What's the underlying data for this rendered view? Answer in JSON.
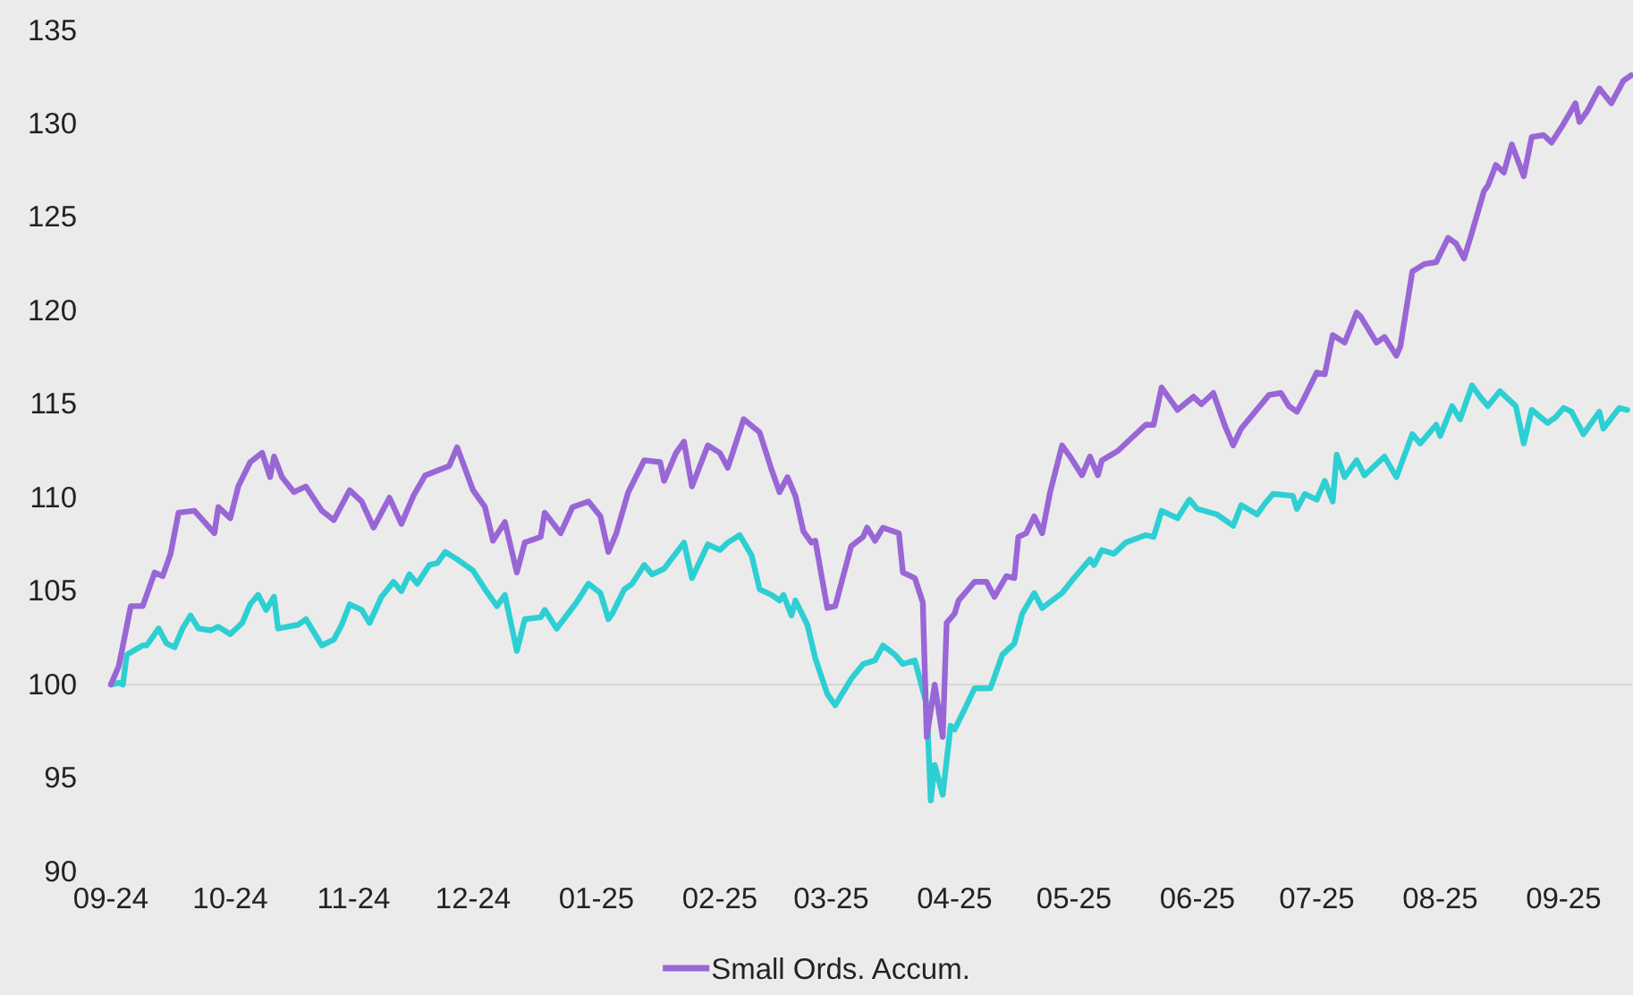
{
  "chart_data": {
    "type": "line",
    "xlim": [
      "2024-09-01",
      "2025-09-18"
    ],
    "xticks": [
      {
        "value": "2024-09-01",
        "label": "09-24"
      },
      {
        "value": "2024-10-01",
        "label": "10-24"
      },
      {
        "value": "2024-11-01",
        "label": "11-24"
      },
      {
        "value": "2024-12-01",
        "label": "12-24"
      },
      {
        "value": "2025-01-01",
        "label": "01-25"
      },
      {
        "value": "2025-02-01",
        "label": "02-25"
      },
      {
        "value": "2025-03-01",
        "label": "03-25"
      },
      {
        "value": "2025-04-01",
        "label": "04-25"
      },
      {
        "value": "2025-05-01",
        "label": "05-25"
      },
      {
        "value": "2025-06-01",
        "label": "06-25"
      },
      {
        "value": "2025-07-01",
        "label": "07-25"
      },
      {
        "value": "2025-08-01",
        "label": "08-25"
      },
      {
        "value": "2025-09-01",
        "label": "09-25"
      }
    ],
    "ylim": [
      90,
      135
    ],
    "yticks": [
      90,
      95,
      100,
      105,
      110,
      115,
      120,
      125,
      130,
      135
    ],
    "grid": false,
    "legend": "bottom",
    "line_style": "solid",
    "marker": "none",
    "ref_lines": [
      {
        "axis": "y",
        "value": 100,
        "color": "#d9d9d9"
      }
    ],
    "series": [
      {
        "color": "#2ecfd3",
        "x": [
          "2024-09-01",
          "2024-09-03",
          "2024-09-04",
          "2024-09-05",
          "2024-09-09",
          "2024-09-10",
          "2024-09-13",
          "2024-09-15",
          "2024-09-17",
          "2024-09-19",
          "2024-09-21",
          "2024-09-23",
          "2024-09-26",
          "2024-09-28",
          "2024-10-01",
          "2024-10-04",
          "2024-10-06",
          "2024-10-08",
          "2024-10-10",
          "2024-10-12",
          "2024-10-13",
          "2024-10-18",
          "2024-10-20",
          "2024-10-24",
          "2024-10-27",
          "2024-10-29",
          "2024-10-31",
          "2024-11-03",
          "2024-11-05",
          "2024-11-08",
          "2024-11-11",
          "2024-11-13",
          "2024-11-15",
          "2024-11-17",
          "2024-11-20",
          "2024-11-22",
          "2024-11-24",
          "2024-11-27",
          "2024-12-01",
          "2024-12-04",
          "2024-12-07",
          "2024-12-09",
          "2024-12-12",
          "2024-12-14",
          "2024-12-18",
          "2024-12-19",
          "2024-12-22",
          "2024-12-27",
          "2024-12-30",
          "2025-01-02",
          "2025-01-04",
          "2025-01-05",
          "2025-01-08",
          "2025-01-10",
          "2025-01-13",
          "2025-01-15",
          "2025-01-18",
          "2025-01-23",
          "2025-01-25",
          "2025-01-29",
          "2025-02-01",
          "2025-02-03",
          "2025-02-06",
          "2025-02-09",
          "2025-02-11",
          "2025-02-14",
          "2025-02-16",
          "2025-02-17",
          "2025-02-19",
          "2025-02-20",
          "2025-02-23",
          "2025-02-25",
          "2025-02-28",
          "2025-03-02",
          "2025-03-06",
          "2025-03-09",
          "2025-03-12",
          "2025-03-14",
          "2025-03-17",
          "2025-03-19",
          "2025-03-22",
          "2025-03-25",
          "2025-03-26",
          "2025-03-27",
          "2025-03-29",
          "2025-03-31",
          "2025-04-01",
          "2025-04-04",
          "2025-04-06",
          "2025-04-10",
          "2025-04-13",
          "2025-04-16",
          "2025-04-18",
          "2025-04-21",
          "2025-04-23",
          "2025-04-28",
          "2025-05-01",
          "2025-05-05",
          "2025-05-06",
          "2025-05-08",
          "2025-05-11",
          "2025-05-14",
          "2025-05-19",
          "2025-05-21",
          "2025-05-23",
          "2025-05-27",
          "2025-05-30",
          "2025-06-01",
          "2025-06-06",
          "2025-06-10",
          "2025-06-12",
          "2025-06-16",
          "2025-06-18",
          "2025-06-20",
          "2025-06-25",
          "2025-06-26",
          "2025-06-28",
          "2025-07-01",
          "2025-07-03",
          "2025-07-05",
          "2025-07-06",
          "2025-07-08",
          "2025-07-11",
          "2025-07-13",
          "2025-07-18",
          "2025-07-21",
          "2025-07-25",
          "2025-07-27",
          "2025-07-31",
          "2025-08-01",
          "2025-08-04",
          "2025-08-06",
          "2025-08-09",
          "2025-08-11",
          "2025-08-13",
          "2025-08-16",
          "2025-08-20",
          "2025-08-22",
          "2025-08-24",
          "2025-08-28",
          "2025-08-30",
          "2025-09-01",
          "2025-09-03",
          "2025-09-06",
          "2025-09-10",
          "2025-09-11",
          "2025-09-15",
          "2025-09-17"
        ],
        "values": [
          100,
          100.1,
          100,
          101.6,
          102.1,
          102.1,
          103,
          102.2,
          102,
          103,
          103.7,
          103,
          102.9,
          103.1,
          102.7,
          103.3,
          104.3,
          104.8,
          104,
          104.7,
          103,
          103.2,
          103.5,
          102.1,
          102.4,
          103.2,
          104.3,
          104,
          103.3,
          104.7,
          105.5,
          105,
          105.9,
          105.4,
          106.4,
          106.5,
          107.1,
          106.7,
          106.1,
          105.1,
          104.2,
          104.8,
          101.8,
          103.5,
          103.6,
          104,
          103,
          104.4,
          105.4,
          104.9,
          103.5,
          103.8,
          105.1,
          105.4,
          106.4,
          105.9,
          106.2,
          107.6,
          105.7,
          107.5,
          107.2,
          107.6,
          108,
          106.9,
          105.1,
          104.8,
          104.5,
          104.8,
          103.7,
          104.5,
          103.2,
          101.4,
          99.5,
          98.9,
          100.3,
          101.1,
          101.3,
          102.1,
          101.6,
          101.1,
          101.3,
          98.9,
          93.8,
          95.7,
          94.1,
          97.8,
          97.6,
          98.9,
          99.8,
          99.8,
          101.6,
          102.2,
          103.8,
          104.9,
          104.1,
          104.9,
          105.7,
          106.7,
          106.4,
          107.2,
          107,
          107.6,
          108,
          107.9,
          109.3,
          108.9,
          109.9,
          109.4,
          109.1,
          108.5,
          109.6,
          109.1,
          109.7,
          110.2,
          110.1,
          109.4,
          110.2,
          109.9,
          110.9,
          109.8,
          112.3,
          111.1,
          112,
          111.2,
          112.2,
          111.1,
          113.4,
          112.9,
          113.9,
          113.3,
          114.9,
          114.2,
          116,
          115.4,
          114.9,
          115.7,
          114.9,
          112.9,
          114.7,
          114,
          114.3,
          114.8,
          114.6,
          113.4,
          114.6,
          113.7,
          114.8,
          114.7
        ]
      },
      {
        "name": "Small Ords. Accum.",
        "color": "#9966d6",
        "x": [
          "2024-09-01",
          "2024-09-03",
          "2024-09-06",
          "2024-09-09",
          "2024-09-12",
          "2024-09-14",
          "2024-09-16",
          "2024-09-18",
          "2024-09-22",
          "2024-09-27",
          "2024-09-28",
          "2024-10-01",
          "2024-10-03",
          "2024-10-06",
          "2024-10-09",
          "2024-10-11",
          "2024-10-12",
          "2024-10-14",
          "2024-10-17",
          "2024-10-20",
          "2024-10-24",
          "2024-10-27",
          "2024-10-31",
          "2024-11-03",
          "2024-11-06",
          "2024-11-10",
          "2024-11-13",
          "2024-11-16",
          "2024-11-19",
          "2024-11-25",
          "2024-11-27",
          "2024-12-01",
          "2024-12-04",
          "2024-12-06",
          "2024-12-09",
          "2024-12-12",
          "2024-12-14",
          "2024-12-18",
          "2024-12-19",
          "2024-12-23",
          "2024-12-26",
          "2024-12-30",
          "2025-01-02",
          "2025-01-04",
          "2025-01-06",
          "2025-01-09",
          "2025-01-13",
          "2025-01-17",
          "2025-01-18",
          "2025-01-21",
          "2025-01-23",
          "2025-01-25",
          "2025-01-29",
          "2025-02-01",
          "2025-02-03",
          "2025-02-07",
          "2025-02-11",
          "2025-02-14",
          "2025-02-16",
          "2025-02-18",
          "2025-02-20",
          "2025-02-22",
          "2025-02-24",
          "2025-02-25",
          "2025-02-28",
          "2025-03-02",
          "2025-03-06",
          "2025-03-09",
          "2025-03-10",
          "2025-03-12",
          "2025-03-14",
          "2025-03-18",
          "2025-03-19",
          "2025-03-22",
          "2025-03-24",
          "2025-03-25",
          "2025-03-27",
          "2025-03-29",
          "2025-03-30",
          "2025-04-01",
          "2025-04-02",
          "2025-04-06",
          "2025-04-09",
          "2025-04-11",
          "2025-04-14",
          "2025-04-16",
          "2025-04-17",
          "2025-04-19",
          "2025-04-21",
          "2025-04-23",
          "2025-04-25",
          "2025-04-28",
          "2025-04-30",
          "2025-05-03",
          "2025-05-05",
          "2025-05-07",
          "2025-05-08",
          "2025-05-12",
          "2025-05-16",
          "2025-05-19",
          "2025-05-21",
          "2025-05-23",
          "2025-05-27",
          "2025-05-31",
          "2025-06-02",
          "2025-06-05",
          "2025-06-08",
          "2025-06-10",
          "2025-06-12",
          "2025-06-19",
          "2025-06-22",
          "2025-06-24",
          "2025-06-26",
          "2025-06-28",
          "2025-07-01",
          "2025-07-03",
          "2025-07-05",
          "2025-07-08",
          "2025-07-11",
          "2025-07-12",
          "2025-07-16",
          "2025-07-18",
          "2025-07-21",
          "2025-07-22",
          "2025-07-25",
          "2025-07-28",
          "2025-07-31",
          "2025-08-03",
          "2025-08-05",
          "2025-08-07",
          "2025-08-09",
          "2025-08-12",
          "2025-08-13",
          "2025-08-15",
          "2025-08-17",
          "2025-08-19",
          "2025-08-22",
          "2025-08-24",
          "2025-08-27",
          "2025-08-29",
          "2025-09-01",
          "2025-09-04",
          "2025-09-05",
          "2025-09-07",
          "2025-09-10",
          "2025-09-13",
          "2025-09-16",
          "2025-09-18"
        ],
        "values": [
          100,
          101,
          104.2,
          104.2,
          106,
          105.8,
          107,
          109.2,
          109.3,
          108.1,
          109.5,
          108.9,
          110.6,
          111.9,
          112.4,
          111.1,
          112.2,
          111.1,
          110.3,
          110.6,
          109.3,
          108.8,
          110.4,
          109.8,
          108.4,
          110,
          108.6,
          110.1,
          111.2,
          111.7,
          112.7,
          110.4,
          109.5,
          107.7,
          108.7,
          106,
          107.6,
          107.9,
          109.2,
          108.1,
          109.5,
          109.8,
          109,
          107.1,
          108.1,
          110.3,
          112,
          111.9,
          110.9,
          112.4,
          113,
          110.6,
          112.8,
          112.4,
          111.6,
          114.2,
          113.5,
          111.5,
          110.3,
          111.1,
          110.1,
          108.2,
          107.6,
          107.7,
          104.1,
          104.2,
          107.4,
          107.9,
          108.4,
          107.7,
          108.4,
          108.1,
          106,
          105.7,
          104.4,
          97.2,
          100,
          97.2,
          103.3,
          103.8,
          104.5,
          105.5,
          105.5,
          104.7,
          105.8,
          105.7,
          107.9,
          108.1,
          109,
          108.1,
          110.3,
          112.8,
          112.2,
          111.2,
          112.2,
          111.2,
          112,
          112.5,
          113.3,
          113.9,
          113.9,
          115.9,
          114.7,
          115.4,
          115,
          115.6,
          113.8,
          112.8,
          113.7,
          115.5,
          115.6,
          114.9,
          114.6,
          115.4,
          116.7,
          116.6,
          118.7,
          118.3,
          119.9,
          119.7,
          118.3,
          118.6,
          117.6,
          118.1,
          122.1,
          122.5,
          122.6,
          123.9,
          123.6,
          122.8,
          124.2,
          126.4,
          126.7,
          127.8,
          127.4,
          128.9,
          127.2,
          129.3,
          129.4,
          129,
          130,
          131.1,
          130.1,
          130.7,
          131.9,
          131.1,
          132.3,
          132.6
        ]
      }
    ]
  }
}
